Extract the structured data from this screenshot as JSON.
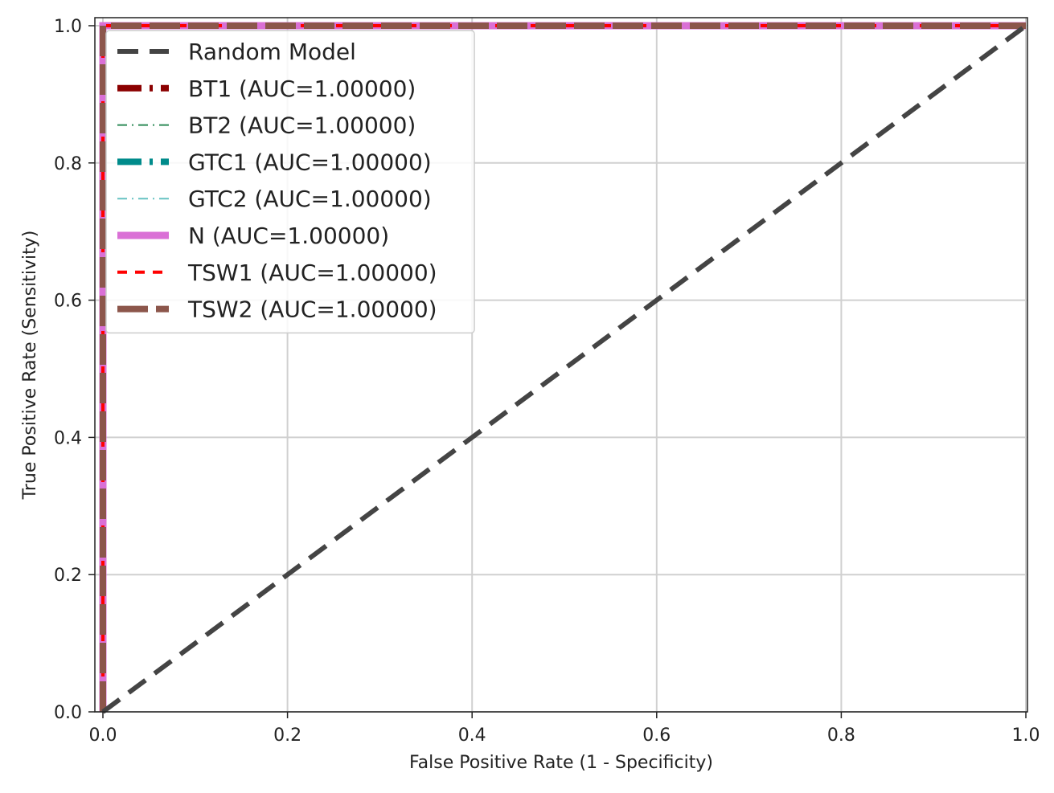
{
  "chart_data": {
    "type": "line",
    "title": "",
    "xlabel": "False Positive Rate (1 - Specificity)",
    "ylabel": "True Positive Rate (Sensitivity)",
    "xlim": [
      0.0,
      1.0
    ],
    "ylim": [
      0.0,
      1.0
    ],
    "xticks": [
      0.0,
      0.2,
      0.4,
      0.6,
      0.8,
      1.0
    ],
    "yticks": [
      0.0,
      0.2,
      0.4,
      0.6,
      0.8,
      1.0
    ],
    "xtick_labels": [
      "0.0",
      "0.2",
      "0.4",
      "0.6",
      "0.8",
      "1.0"
    ],
    "ytick_labels": [
      "0.0",
      "0.2",
      "0.4",
      "0.6",
      "0.8",
      "1.0"
    ],
    "grid": true,
    "legend_position": "top-left",
    "series": [
      {
        "name": "Random Model",
        "x": [
          0.0,
          1.0
        ],
        "y": [
          0.0,
          1.0
        ],
        "color": "#444444",
        "dash": "dashed"
      },
      {
        "name": "BT1 (AUC=1.00000)",
        "x": [
          0.0,
          0.0,
          1.0
        ],
        "y": [
          0.0,
          1.0,
          1.0
        ],
        "color": "#8b0000",
        "dash": "dashdot"
      },
      {
        "name": "BT2 (AUC=1.00000)",
        "x": [
          0.0,
          0.0,
          1.0
        ],
        "y": [
          0.0,
          1.0,
          1.0
        ],
        "color": "#2e8b57",
        "dash": "dashdot"
      },
      {
        "name": "GTC1 (AUC=1.00000)",
        "x": [
          0.0,
          0.0,
          1.0
        ],
        "y": [
          0.0,
          1.0,
          1.0
        ],
        "color": "#008b8b",
        "dash": "dashdot"
      },
      {
        "name": "GTC2 (AUC=1.00000)",
        "x": [
          0.0,
          0.0,
          1.0
        ],
        "y": [
          0.0,
          1.0,
          1.0
        ],
        "color": "#66c2c2",
        "dash": "dashdot"
      },
      {
        "name": "N (AUC=1.00000)",
        "x": [
          0.0,
          0.0,
          1.0
        ],
        "y": [
          0.0,
          1.0,
          1.0
        ],
        "color": "#da70d6",
        "dash": "solid"
      },
      {
        "name": "TSW1 (AUC=1.00000)",
        "x": [
          0.0,
          0.0,
          1.0
        ],
        "y": [
          0.0,
          1.0,
          1.0
        ],
        "color": "#ff0000",
        "dash": "dashed"
      },
      {
        "name": "TSW2 (AUC=1.00000)",
        "x": [
          0.0,
          0.0,
          1.0
        ],
        "y": [
          0.0,
          1.0,
          1.0
        ],
        "color": "#8c564b",
        "dash": "dashed"
      }
    ]
  }
}
